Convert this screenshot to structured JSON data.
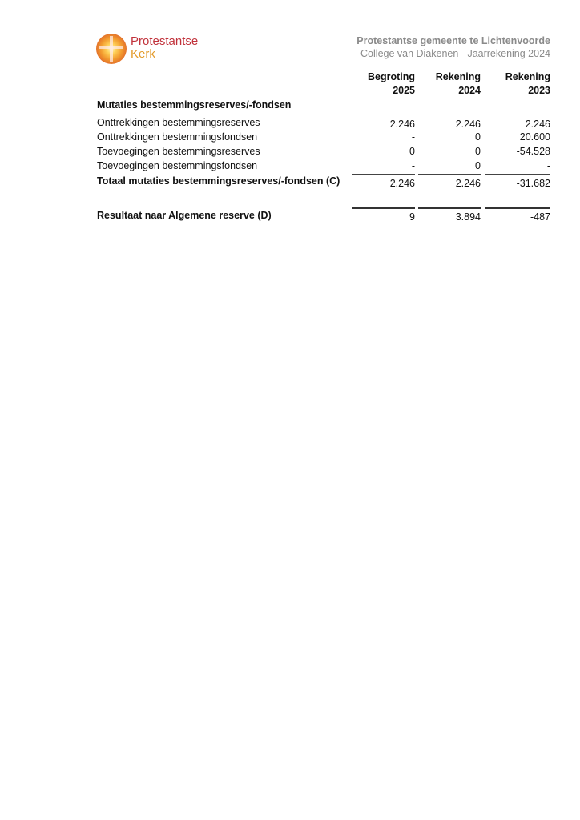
{
  "logo": {
    "line1": "Protestantse",
    "line2": "Kerk"
  },
  "header": {
    "organization": "Protestantse gemeente te Lichtenvoorde",
    "subtitle": "College van Diakenen - Jaarrekening 2024"
  },
  "columns": [
    {
      "label": "Begroting",
      "year": "2025"
    },
    {
      "label": "Rekening",
      "year": "2024"
    },
    {
      "label": "Rekening",
      "year": "2023"
    }
  ],
  "section_title": "Mutaties bestemmingsreserves/-fondsen",
  "rows": [
    {
      "label": "Onttrekkingen bestemmingsreserves",
      "values": [
        "2.246",
        "2.246",
        "2.246"
      ]
    },
    {
      "label": "Onttrekkingen bestemmingsfondsen",
      "values": [
        "-",
        "0",
        "20.600"
      ]
    },
    {
      "label": "Toevoegingen bestemmingsreserves",
      "values": [
        "0",
        "0",
        "-54.528"
      ]
    },
    {
      "label": "Toevoegingen bestemmingsfondsen",
      "values": [
        "-",
        "0",
        "-"
      ]
    }
  ],
  "total": {
    "label": "Totaal mutaties bestemmingsreserves/-fondsen (C)",
    "values": [
      "2.246",
      "2.246",
      "-31.682"
    ]
  },
  "result": {
    "label": "Resultaat naar Algemene reserve (D)",
    "values": [
      "9",
      "3.894",
      "-487"
    ]
  }
}
